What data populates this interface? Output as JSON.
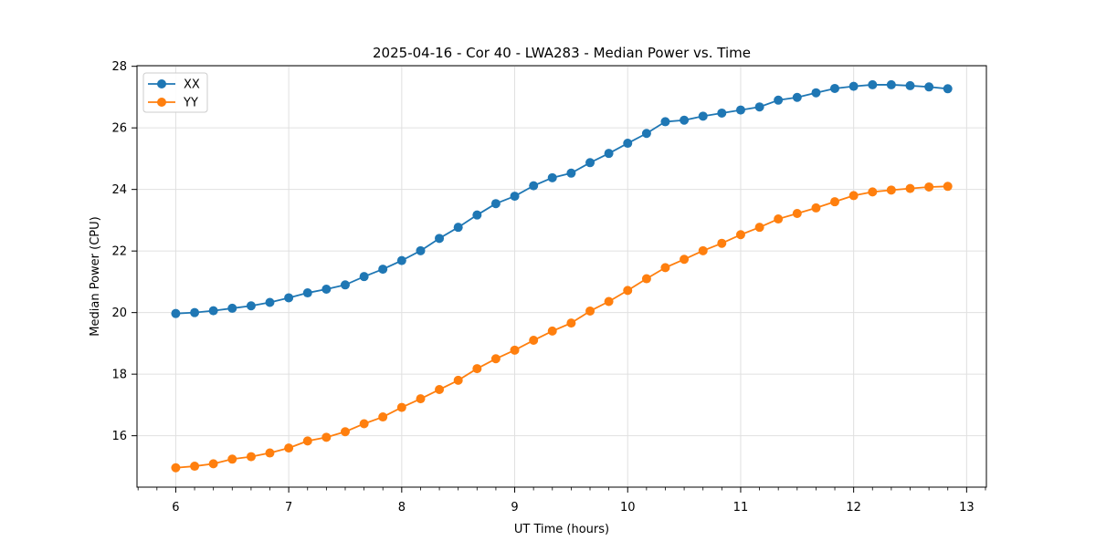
{
  "figure": {
    "background": "#ffffff",
    "frame_color": "#000000",
    "grid_color": "#e0e0e0"
  },
  "chart_data": {
    "type": "line",
    "title": "2025-04-16 - Cor 40 - LWA283 - Median Power vs. Time",
    "xlabel": "UT Time (hours)",
    "ylabel": "Median Power (CPU)",
    "x": [
      6.0,
      6.167,
      6.333,
      6.5,
      6.667,
      6.833,
      7.0,
      7.167,
      7.333,
      7.5,
      7.667,
      7.833,
      8.0,
      8.167,
      8.333,
      8.5,
      8.667,
      8.833,
      9.0,
      9.167,
      9.333,
      9.5,
      9.667,
      9.833,
      10.0,
      10.167,
      10.333,
      10.5,
      10.667,
      10.833,
      11.0,
      11.167,
      11.333,
      11.5,
      11.667,
      11.833,
      12.0,
      12.167,
      12.333,
      12.5,
      12.667,
      12.833
    ],
    "series": [
      {
        "name": "XX",
        "color": "#1f77b4",
        "values": [
          19.97,
          20.0,
          20.06,
          20.14,
          20.22,
          20.33,
          20.48,
          20.64,
          20.76,
          20.9,
          21.17,
          21.41,
          21.69,
          22.01,
          22.41,
          22.77,
          23.17,
          23.54,
          23.78,
          24.12,
          24.38,
          24.53,
          24.87,
          25.17,
          25.5,
          25.82,
          26.2,
          26.25,
          26.38,
          26.48,
          26.58,
          26.68,
          26.9,
          26.99,
          27.14,
          27.28,
          27.35,
          27.4,
          27.4,
          27.37,
          27.33,
          27.27
        ]
      },
      {
        "name": "YY",
        "color": "#ff7f0e",
        "values": [
          14.96,
          15.01,
          15.09,
          15.24,
          15.32,
          15.44,
          15.6,
          15.83,
          15.95,
          16.13,
          16.39,
          16.61,
          16.92,
          17.2,
          17.5,
          17.8,
          18.18,
          18.5,
          18.78,
          19.1,
          19.4,
          19.66,
          20.05,
          20.36,
          20.72,
          21.1,
          21.46,
          21.73,
          22.01,
          22.25,
          22.53,
          22.77,
          23.04,
          23.22,
          23.4,
          23.6,
          23.8,
          23.92,
          23.98,
          24.03,
          24.08,
          24.1
        ]
      }
    ],
    "xlim": [
      5.657,
      13.175
    ],
    "ylim": [
      14.33,
      28.02
    ],
    "x_ticks": [
      6,
      7,
      8,
      9,
      10,
      11,
      12,
      13
    ],
    "y_ticks": [
      16,
      18,
      20,
      22,
      24,
      26,
      28
    ],
    "x_minor_tick_step": 0.1666667,
    "grid": true,
    "legend": {
      "position": "upper left",
      "entries": [
        "XX",
        "YY"
      ]
    }
  }
}
